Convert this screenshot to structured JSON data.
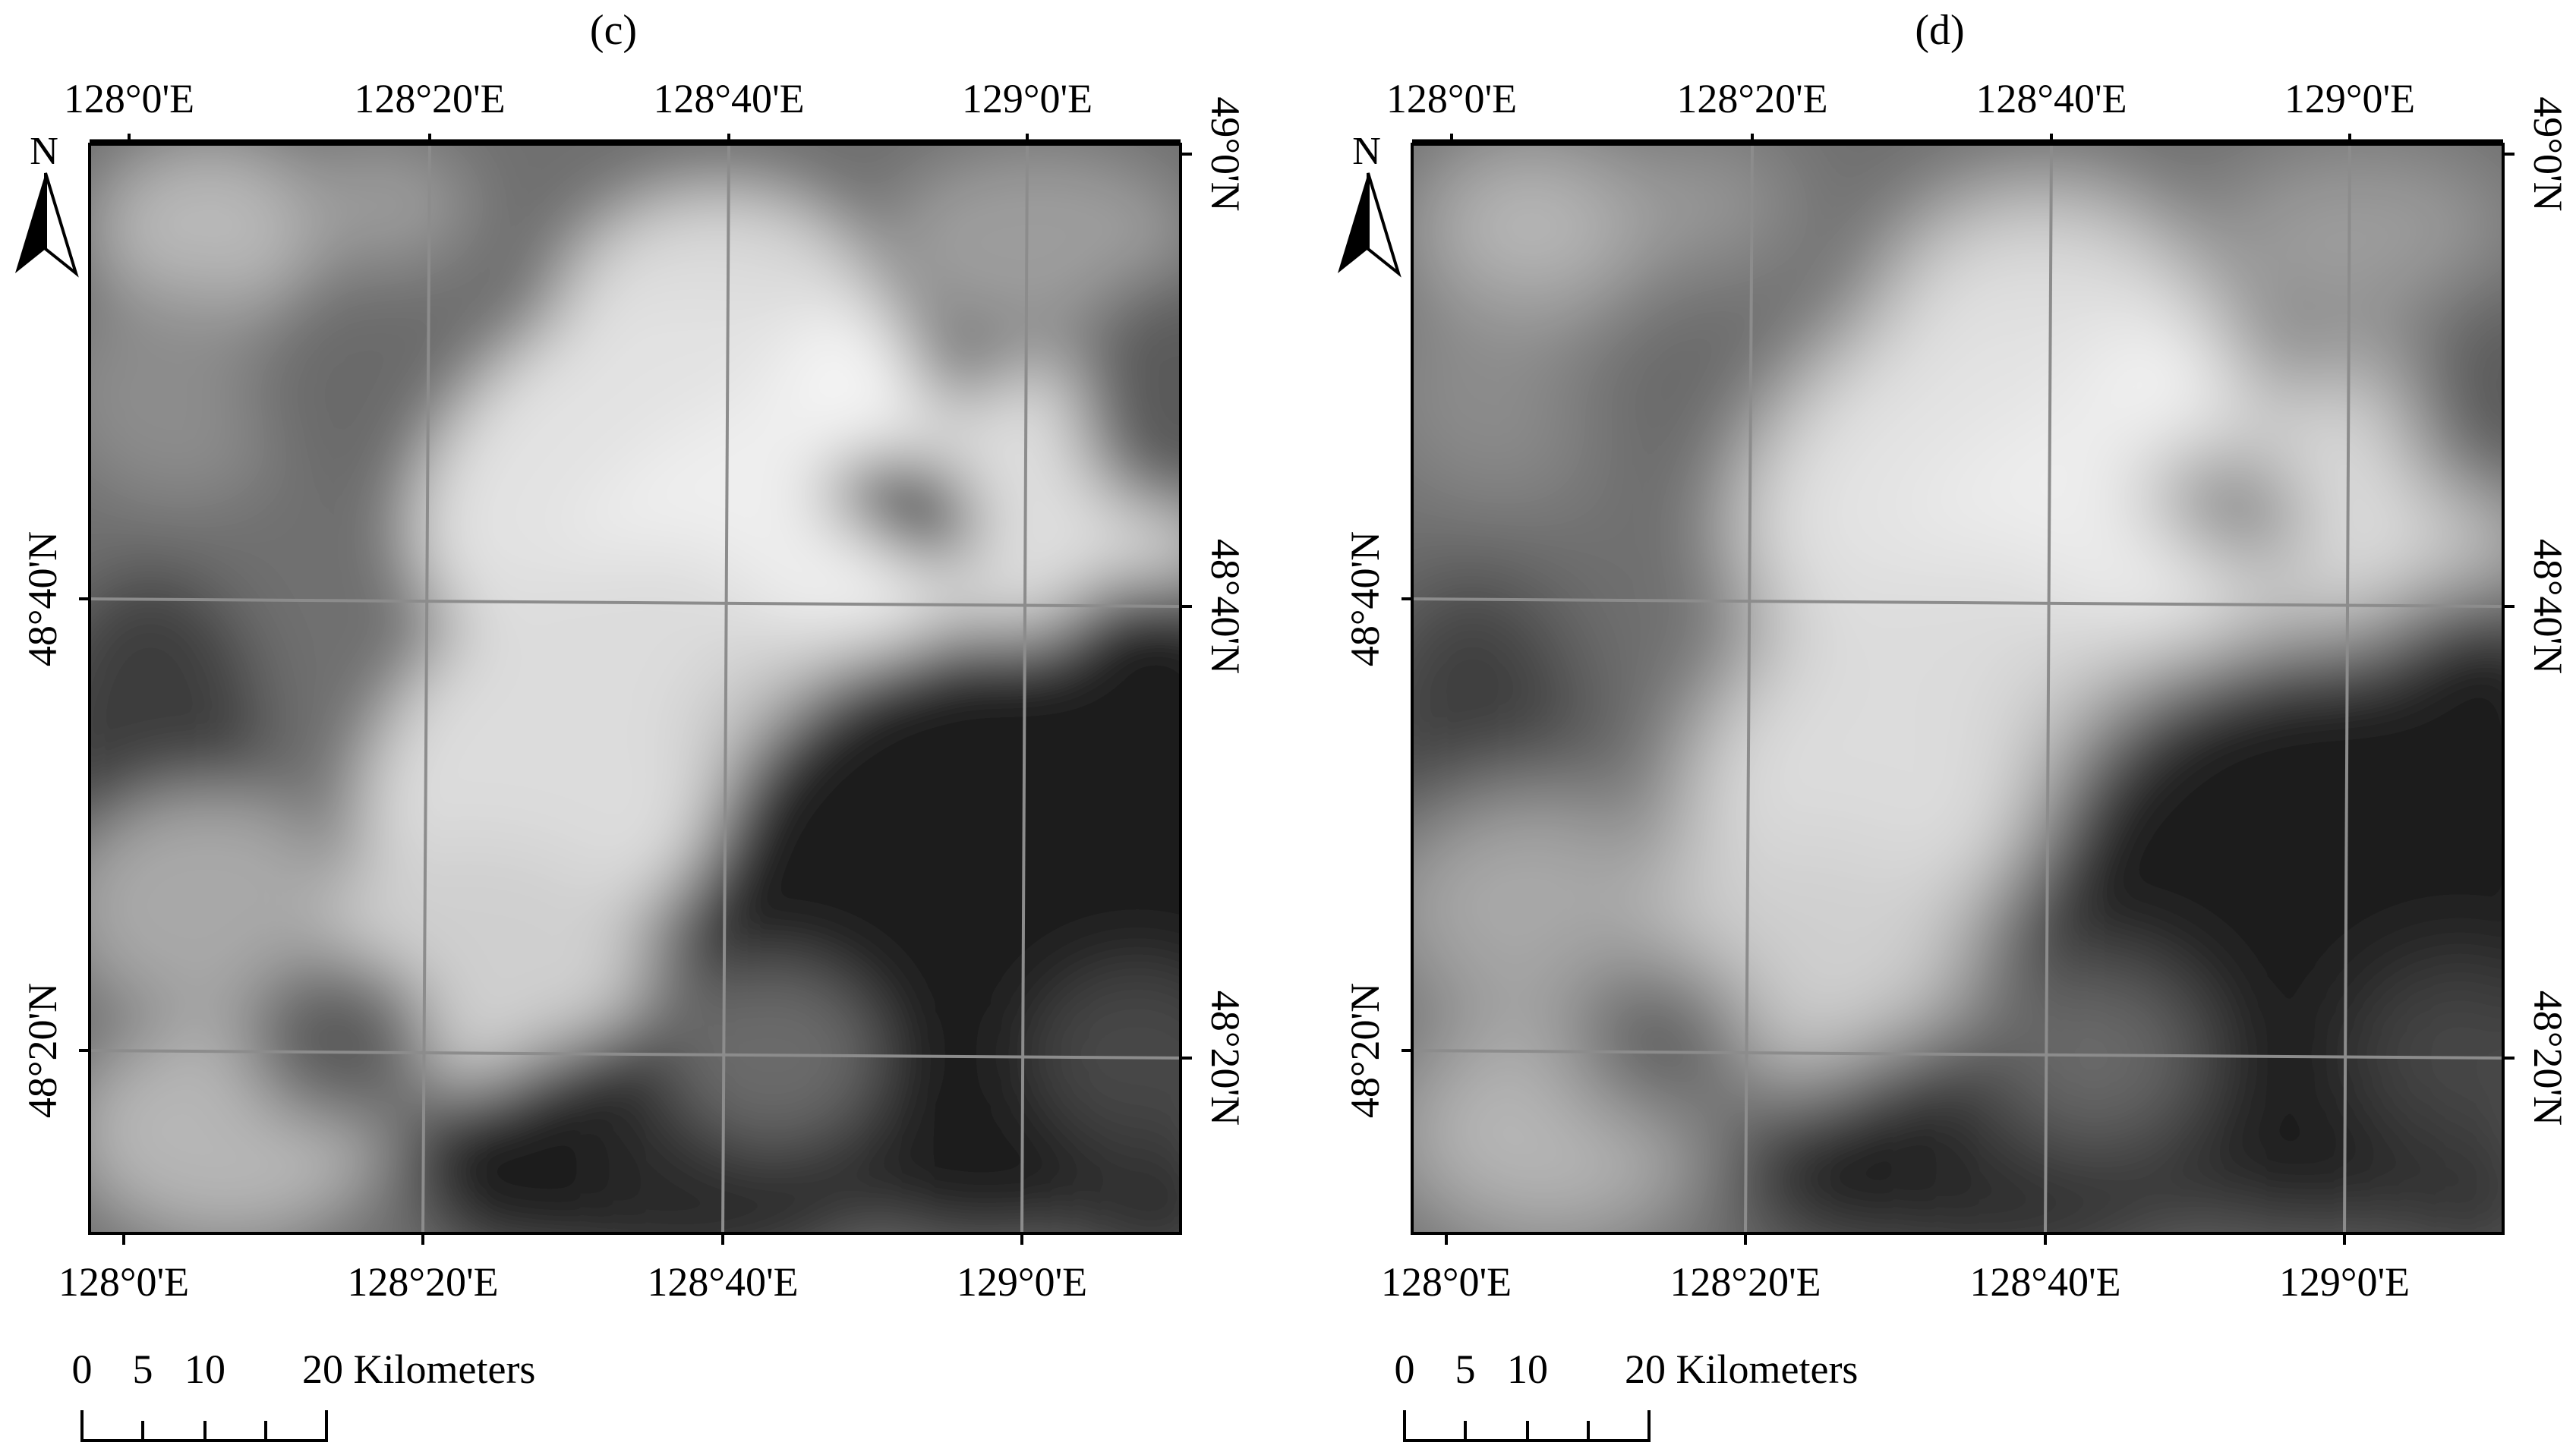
{
  "panels": [
    {
      "label": "(c)",
      "north_label": "N",
      "top_ticks": [
        "128°0'E",
        "128°20'E",
        "128°40'E",
        "129°0'E"
      ],
      "bottom_ticks": [
        "128°0'E",
        "128°20'E",
        "128°40'E",
        "129°0'E"
      ],
      "left_ticks": [
        "48°40'N",
        "48°20'N"
      ],
      "right_ticks": [
        "49°0'N",
        "48°40'N",
        "48°20'N"
      ],
      "scale_numbers": [
        "0",
        "5",
        "10"
      ],
      "scale_label": "20 Kilometers"
    },
    {
      "label": "(d)",
      "north_label": "N",
      "top_ticks": [
        "128°0'E",
        "128°20'E",
        "128°40'E",
        "129°0'E"
      ],
      "bottom_ticks": [
        "128°0'E",
        "128°20'E",
        "128°40'E",
        "129°0'E"
      ],
      "left_ticks": [
        "48°40'N",
        "48°20'N"
      ],
      "right_ticks": [
        "49°0'N",
        "48°40'N",
        "48°20'N"
      ],
      "scale_numbers": [
        "0",
        "5",
        "10"
      ],
      "scale_label": "20 Kilometers"
    }
  ],
  "colors": {
    "background": "#ffffff",
    "frame": "#000000",
    "graticule": "#8c8c8c"
  }
}
